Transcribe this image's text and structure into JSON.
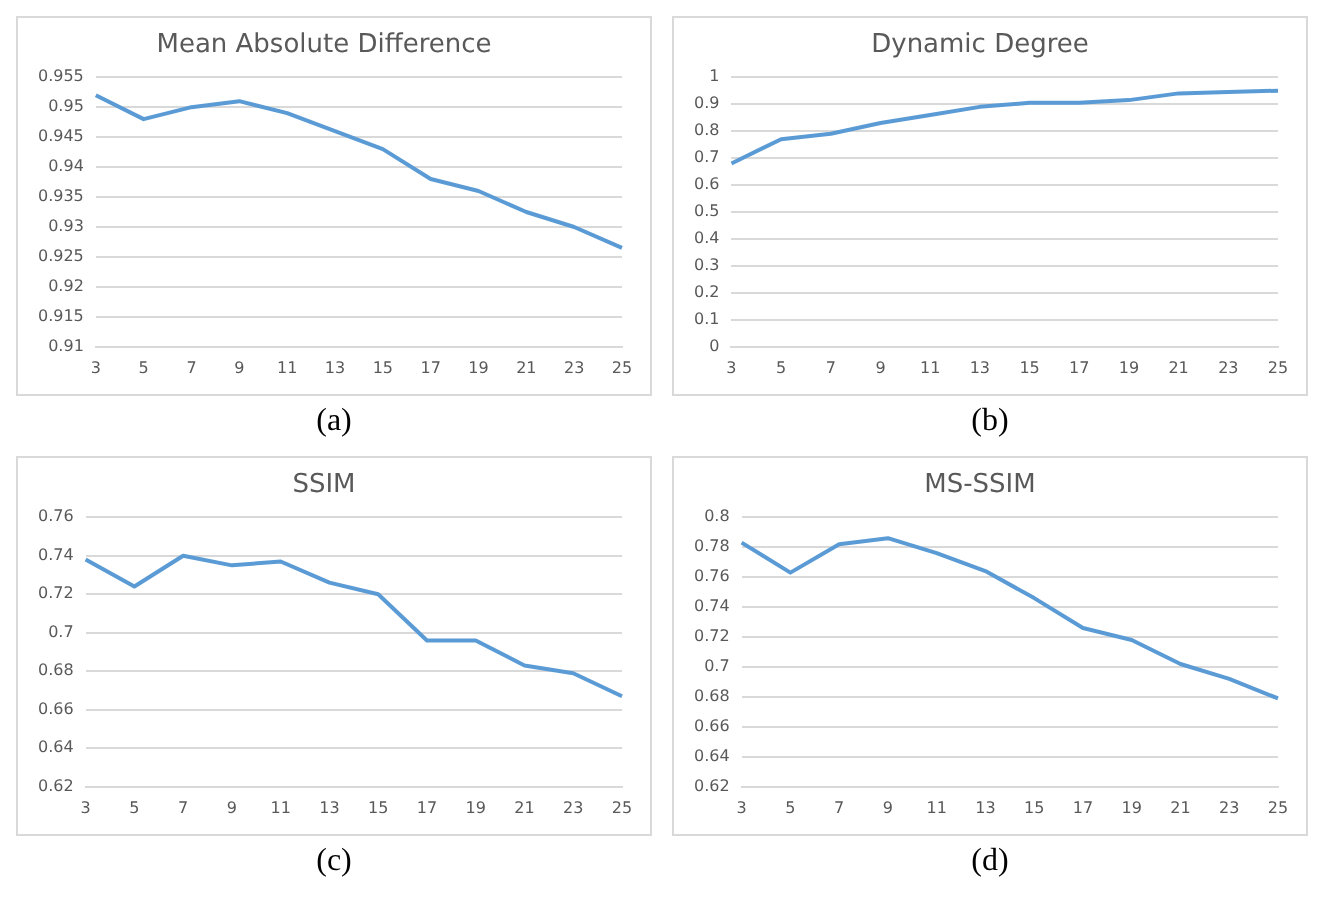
{
  "chart_data": [
    {
      "type": "line",
      "title": "Mean Absolute Difference",
      "categories": [
        "3",
        "5",
        "7",
        "9",
        "11",
        "13",
        "15",
        "17",
        "19",
        "21",
        "23",
        "25"
      ],
      "series": [
        {
          "color": "#5b9bd5",
          "values": [
            0.952,
            0.948,
            0.95,
            0.951,
            0.949,
            0.946,
            0.943,
            0.938,
            0.936,
            0.9325,
            0.93,
            0.9265
          ]
        }
      ],
      "ylim": [
        0.91,
        0.955
      ],
      "yticks": [
        0.91,
        0.915,
        0.92,
        0.925,
        0.93,
        0.935,
        0.94,
        0.945,
        0.95,
        0.955
      ],
      "grid": "y",
      "legend": false,
      "marker": "none",
      "annotations": [
        "(a)"
      ]
    },
    {
      "type": "line",
      "title": "Dynamic Degree",
      "categories": [
        "3",
        "5",
        "7",
        "9",
        "11",
        "13",
        "15",
        "17",
        "19",
        "21",
        "23",
        "25"
      ],
      "series": [
        {
          "color": "#5b9bd5",
          "values": [
            0.68,
            0.77,
            0.79,
            0.83,
            0.86,
            0.89,
            0.905,
            0.905,
            0.915,
            0.94,
            0.945,
            0.95
          ]
        }
      ],
      "ylim": [
        0,
        1
      ],
      "yticks": [
        0,
        0.1,
        0.2,
        0.3,
        0.4,
        0.5,
        0.6,
        0.7,
        0.8,
        0.9,
        1
      ],
      "grid": "y",
      "legend": false,
      "marker": "none",
      "annotations": [
        "(b)"
      ]
    },
    {
      "type": "line",
      "title": "SSIM",
      "categories": [
        "3",
        "5",
        "7",
        "9",
        "11",
        "13",
        "15",
        "17",
        "19",
        "21",
        "23",
        "25"
      ],
      "series": [
        {
          "color": "#5b9bd5",
          "values": [
            0.738,
            0.724,
            0.74,
            0.735,
            0.737,
            0.726,
            0.72,
            0.696,
            0.696,
            0.683,
            0.679,
            0.667
          ]
        }
      ],
      "ylim": [
        0.62,
        0.76
      ],
      "yticks": [
        0.62,
        0.64,
        0.66,
        0.68,
        0.7,
        0.72,
        0.74,
        0.76
      ],
      "grid": "y",
      "legend": false,
      "marker": "none",
      "annotations": [
        "(c)"
      ]
    },
    {
      "type": "line",
      "title": "MS-SSIM",
      "categories": [
        "3",
        "5",
        "7",
        "9",
        "11",
        "13",
        "15",
        "17",
        "19",
        "21",
        "23",
        "25"
      ],
      "series": [
        {
          "color": "#5b9bd5",
          "values": [
            0.783,
            0.763,
            0.782,
            0.786,
            0.776,
            0.764,
            0.746,
            0.726,
            0.718,
            0.702,
            0.692,
            0.679
          ]
        }
      ],
      "ylim": [
        0.62,
        0.8
      ],
      "yticks": [
        0.62,
        0.64,
        0.66,
        0.68,
        0.7,
        0.72,
        0.74,
        0.76,
        0.78,
        0.8
      ],
      "grid": "y",
      "legend": false,
      "marker": "none",
      "annotations": [
        "(d)"
      ]
    }
  ]
}
